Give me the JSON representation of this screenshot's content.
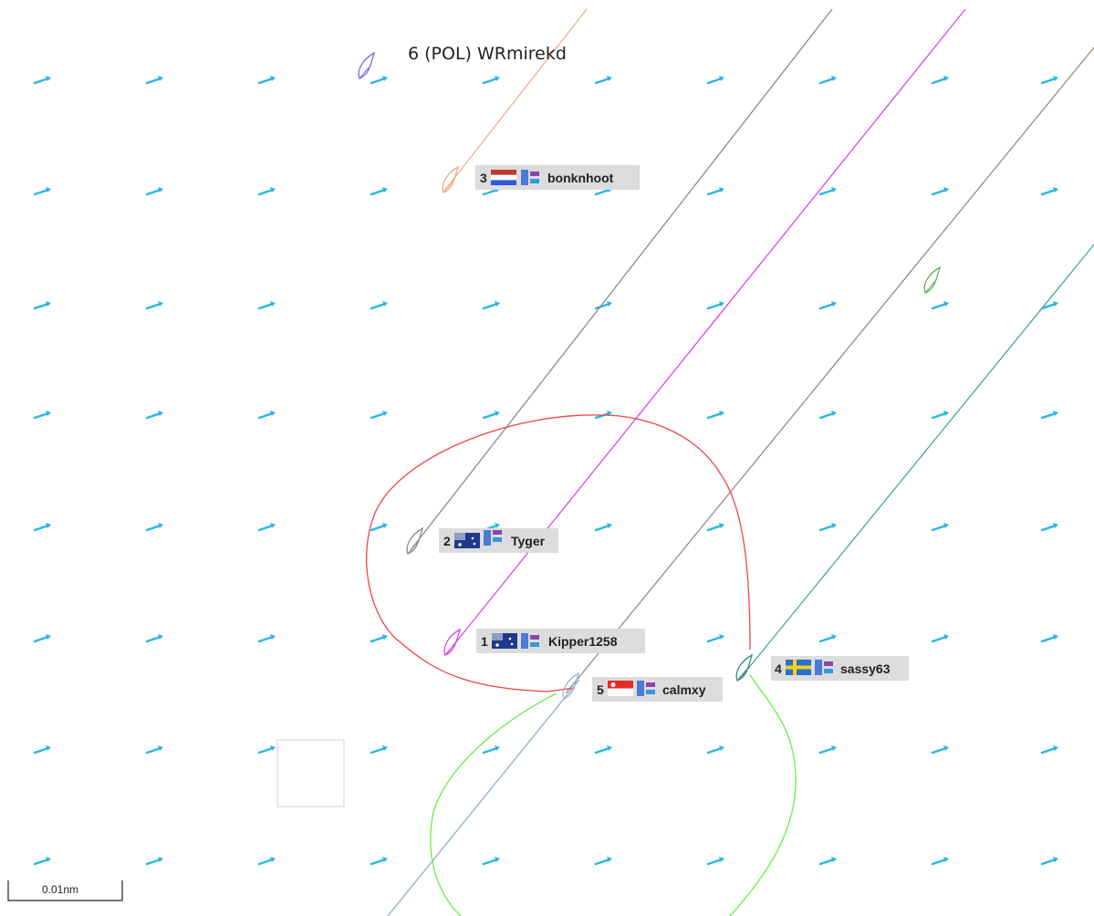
{
  "boats": [
    {
      "rank": "3",
      "flag": "nl",
      "name": "bonknhoot",
      "color": "#f4a582"
    },
    {
      "rank": "2",
      "flag": "au",
      "name": "Tyger",
      "color": "#8a8a8a"
    },
    {
      "rank": "1",
      "flag": "au",
      "name": "Kipper1258",
      "color": "#d946ef"
    },
    {
      "rank": "5",
      "flag": "sg",
      "name": "calmxy",
      "color": "#9bb8d3"
    },
    {
      "rank": "4",
      "flag": "se",
      "name": "sassy63",
      "color": "#3a8a7a"
    }
  ],
  "boat6": {
    "label": "6 (POL) WRmirekd",
    "color": "#7b68ee"
  },
  "unlabeled_boat": {
    "color": "#5fae5f"
  },
  "track_colors": {
    "gray": "#8a8a8a",
    "magenta": "#d946ef",
    "brown": "#9a8a7a",
    "teal": "#4aa3a0",
    "orange": "#f4a582",
    "red": "#ef4444",
    "green": "#66ee44",
    "lightblue": "#9bb8d3"
  },
  "wind_arrow_color": "#29b6e6",
  "scale_bar": {
    "label": "0.01nm"
  }
}
